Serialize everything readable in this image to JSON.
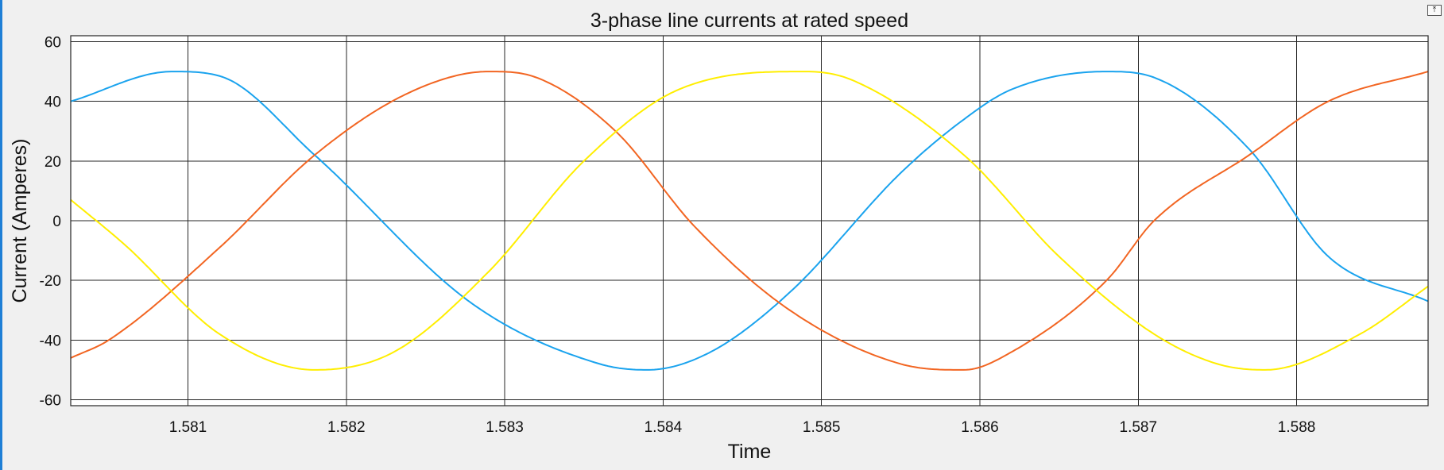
{
  "window": {
    "undock_icon": "undock-arrow-icon",
    "undock_glyph": "⤒"
  },
  "chart_data": {
    "type": "line",
    "title": "3-phase line currents at rated speed",
    "xlabel": "Time",
    "ylabel": "Current (Amperes)",
    "xlim": [
      1.58026,
      1.58883
    ],
    "ylim": [
      -62,
      62
    ],
    "x_ticks": [
      1.581,
      1.582,
      1.583,
      1.584,
      1.585,
      1.586,
      1.587,
      1.588
    ],
    "x_tick_labels": [
      "1.581",
      "1.582",
      "1.583",
      "1.584",
      "1.585",
      "1.586",
      "1.587",
      "1.588"
    ],
    "y_ticks": [
      60,
      40,
      20,
      0,
      -20,
      -40,
      -60
    ],
    "y_tick_labels": [
      "60",
      "40",
      "20",
      "0",
      "-20",
      "-40",
      "-60"
    ],
    "grid": true,
    "background": "#ffffff",
    "series": [
      {
        "color": "#1aa3ee",
        "x": [
          1.58026,
          1.5809,
          1.5812,
          1.5818,
          1.5828,
          1.5836,
          1.5839,
          1.5843,
          1.5848,
          1.5855,
          1.5859,
          1.5862,
          1.5868,
          1.5871,
          1.5877,
          1.5882,
          1.58883
        ],
        "y": [
          40,
          50,
          48.5,
          22,
          -28,
          -48,
          -50,
          -44,
          -24,
          16,
          34,
          44,
          50,
          48,
          24,
          -12,
          -27
        ]
      },
      {
        "color": "#f26522",
        "x": [
          1.58026,
          1.5805,
          1.5812,
          1.5818,
          1.5824,
          1.5829,
          1.5832,
          1.5837,
          1.5842,
          1.5848,
          1.5855,
          1.5859,
          1.5862,
          1.5868,
          1.5871,
          1.5877,
          1.5882,
          1.58883
        ],
        "y": [
          -46,
          -40,
          -9,
          22,
          43,
          50,
          48,
          30,
          -2,
          -30,
          -48,
          -50,
          -44,
          -20,
          0,
          22,
          40,
          50
        ]
      },
      {
        "color": "#ffee00",
        "x": [
          1.58026,
          1.5806,
          1.5812,
          1.5818,
          1.5823,
          1.5829,
          1.5835,
          1.5841,
          1.5849,
          1.5852,
          1.5859,
          1.5865,
          1.5871,
          1.5875,
          1.5878,
          1.5884,
          1.58883
        ],
        "y": [
          7,
          -8,
          -38,
          -50,
          -44,
          -17,
          20,
          44,
          50,
          47,
          22,
          -12,
          -38,
          -48,
          -50,
          -38,
          -22
        ]
      }
    ]
  }
}
